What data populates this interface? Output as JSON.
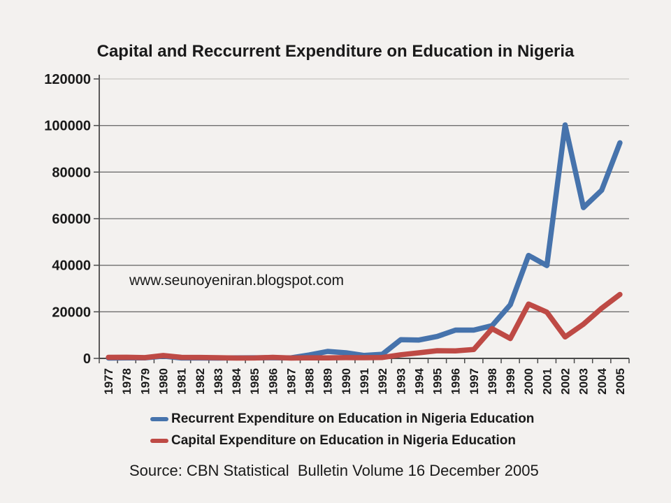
{
  "chart_data": {
    "type": "line",
    "title": "Capital and Reccurrent Expenditure on Education in Nigeria",
    "xlabel": "",
    "ylabel": "",
    "categories": [
      "1977",
      "1978",
      "1979",
      "1980",
      "1981",
      "1982",
      "1983",
      "1984",
      "1985",
      "1986",
      "1987",
      "1988",
      "1989",
      "1990",
      "1991",
      "1992",
      "1993",
      "1994",
      "1995",
      "1996",
      "1997",
      "1998",
      "1999",
      "2000",
      "2001",
      "2002",
      "2003",
      "2004",
      "2005"
    ],
    "series": [
      {
        "name": "Recurrent Expenditure on Education in Nigeria Education",
        "color": "#4673AC",
        "values": [
          160,
          210,
          220,
          950,
          180,
          190,
          160,
          200,
          260,
          260,
          230,
          1460,
          3010,
          2400,
          1260,
          1760,
          8000,
          7880,
          9420,
          12140,
          12140,
          14030,
          23050,
          44230,
          39880,
          100240,
          64760,
          72220,
          92590
        ]
      },
      {
        "name": "Capital Expenditure on Education in Nigeria Education",
        "color": "#BE4A45",
        "values": [
          440,
          470,
          340,
          1240,
          440,
          420,
          310,
          150,
          180,
          440,
          140,
          280,
          220,
          330,
          290,
          380,
          1560,
          2410,
          3310,
          3220,
          3810,
          12790,
          8520,
          23340,
          19860,
          9220,
          14680,
          21550,
          27440
        ]
      }
    ],
    "ylim": [
      0,
      120000
    ],
    "yticks": [
      0,
      20000,
      40000,
      60000,
      80000,
      100000,
      120000
    ],
    "grid": "horizontal",
    "legend_position": "bottom"
  },
  "annotations": {
    "watermark": "www.seunoyeniran.blogspot.com",
    "source": "Source: CBN Statistical  Bulletin Volume 16 December 2005"
  },
  "colors": {
    "background": "#F3F1EF",
    "gridline": "#6F6F6F",
    "top_gridline": "#C8C5C2",
    "axis": "#4A4A4A",
    "text": "#1A1A1A"
  }
}
